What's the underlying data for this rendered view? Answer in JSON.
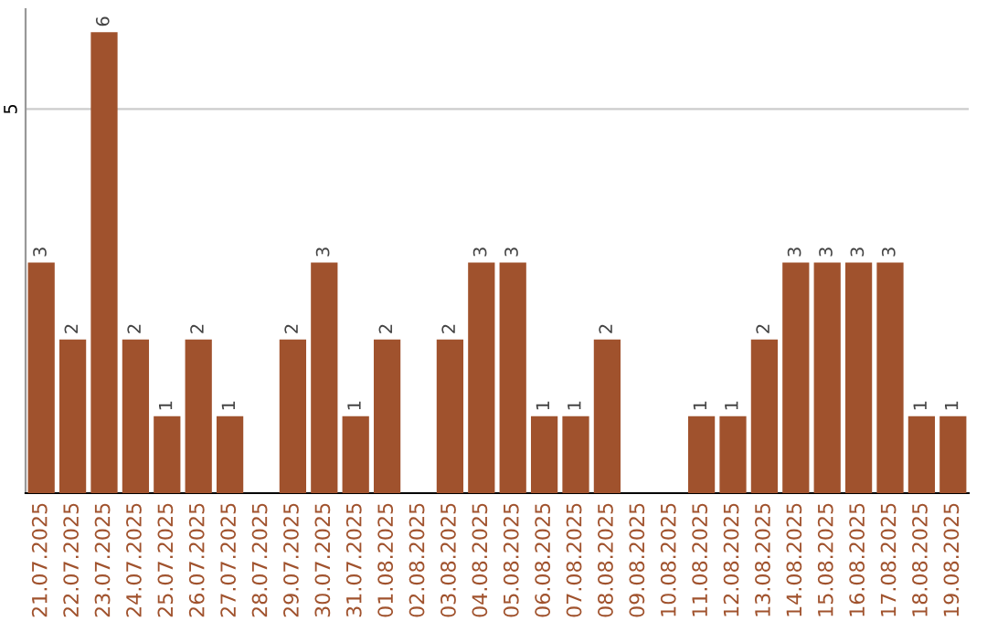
{
  "chart_data": {
    "type": "bar",
    "categories": [
      "21.07.2025",
      "22.07.2025",
      "23.07.2025",
      "24.07.2025",
      "25.07.2025",
      "26.07.2025",
      "27.07.2025",
      "28.07.2025",
      "29.07.2025",
      "30.07.2025",
      "31.07.2025",
      "01.08.2025",
      "02.08.2025",
      "03.08.2025",
      "04.08.2025",
      "05.08.2025",
      "06.08.2025",
      "07.08.2025",
      "08.08.2025",
      "09.08.2025",
      "10.08.2025",
      "11.08.2025",
      "12.08.2025",
      "13.08.2025",
      "14.08.2025",
      "15.08.2025",
      "16.08.2025",
      "17.08.2025",
      "18.08.2025",
      "19.08.2025"
    ],
    "values": [
      3,
      2,
      6,
      2,
      1,
      2,
      1,
      0,
      2,
      3,
      1,
      2,
      0,
      2,
      3,
      3,
      1,
      1,
      2,
      0,
      0,
      1,
      1,
      2,
      3,
      3,
      3,
      3,
      1,
      1
    ],
    "value_labels": [
      "3",
      "2",
      "6",
      "2",
      "1",
      "2",
      "1",
      null,
      "2",
      "3",
      "1",
      "2",
      null,
      "2",
      "3",
      "3",
      "1",
      "1",
      "2",
      null,
      null,
      "1",
      "1",
      "2",
      "3",
      "3",
      "3",
      "3",
      "1",
      "1"
    ],
    "color": "#a0522d",
    "ylim": [
      0,
      6.3
    ],
    "yticks": [
      5
    ],
    "grid": "y"
  }
}
